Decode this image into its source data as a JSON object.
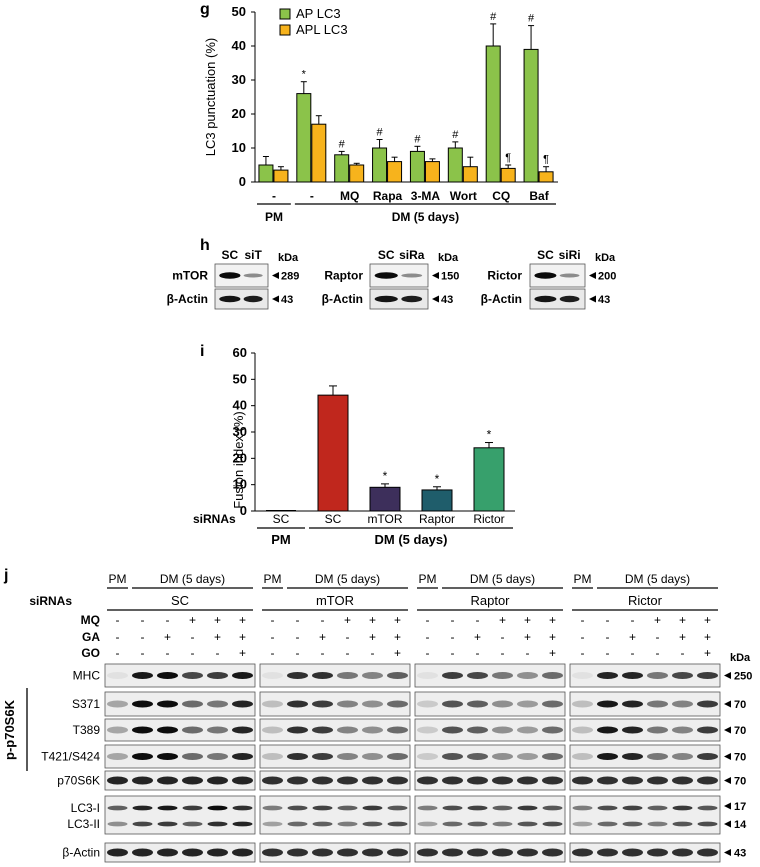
{
  "panels": {
    "g": "g",
    "h": "h",
    "i": "i",
    "j": "j"
  },
  "chart_data": [
    {
      "type": "bar",
      "panel": "g",
      "ylabel": "LC3 punctuation (%)",
      "ylim": [
        0,
        50
      ],
      "yticks": [
        "0",
        "10",
        "20",
        "30",
        "40",
        "50"
      ],
      "categories": [
        "-",
        "-",
        "MQ",
        "Rapa",
        "3-MA",
        "Wort",
        "CQ",
        "Baf"
      ],
      "group_labels": [
        "PM",
        "DM (5 days)"
      ],
      "series": [
        {
          "name": "AP LC3",
          "color": "#8bc34a",
          "values": [
            5,
            26,
            8,
            10,
            9,
            10,
            40,
            39
          ],
          "errors": [
            2.5,
            3.5,
            1,
            2.5,
            1.5,
            1.8,
            6.5,
            7
          ]
        },
        {
          "name": "APL LC3",
          "color": "#f7b31c",
          "values": [
            3.5,
            17,
            5,
            6,
            6,
            4.5,
            4,
            3
          ],
          "errors": [
            1,
            2.5,
            0.5,
            1.3,
            0.8,
            2.8,
            1,
            1.5
          ]
        }
      ],
      "annotations": {
        "AP LC3": [
          "",
          "*",
          "#",
          "#",
          "#",
          "#",
          "#",
          "#"
        ],
        "APL LC3": [
          "",
          "",
          "",
          "",
          "",
          "",
          "¶",
          "¶"
        ]
      },
      "legend": "top-left"
    },
    {
      "type": "bar",
      "panel": "i",
      "ylabel": "Fusion index (%)",
      "ylim": [
        0,
        60
      ],
      "yticks": [
        "0",
        "10",
        "20",
        "30",
        "40",
        "50",
        "60"
      ],
      "row_label": "siRNAs",
      "categories": [
        "SC",
        "SC",
        "mTOR",
        "Raptor",
        "Rictor"
      ],
      "group_labels": [
        "PM",
        "DM (5 days)"
      ],
      "values": [
        0,
        44,
        9,
        8,
        24
      ],
      "errors": [
        0,
        3.5,
        1.3,
        1.2,
        2
      ],
      "colors": [
        "#888888",
        "#c0271d",
        "#3d2f5b",
        "#1f5d6b",
        "#37a06c"
      ],
      "annotations": [
        "",
        "",
        "*",
        "*",
        "*"
      ]
    }
  ],
  "panel_h": {
    "kda_label": "kDa",
    "blots": [
      {
        "lanes": [
          "SC",
          "siT"
        ],
        "row1": "mTOR",
        "row1_kda": "289",
        "row2": "β-Actin",
        "row2_kda": "43"
      },
      {
        "lanes": [
          "SC",
          "siRa"
        ],
        "row1": "Raptor",
        "row1_kda": "150",
        "row2": "β-Actin",
        "row2_kda": "43"
      },
      {
        "lanes": [
          "SC",
          "siRi"
        ],
        "row1": "Rictor",
        "row1_kda": "200",
        "row2": "β-Actin",
        "row2_kda": "43"
      }
    ]
  },
  "panel_j": {
    "header_pm": "PM",
    "header_dm": "DM (5 days)",
    "sirnas_label": "siRNAs",
    "groups": [
      "SC",
      "mTOR",
      "Raptor",
      "Rictor"
    ],
    "treatment_rows": [
      {
        "label": "MQ",
        "signs": [
          "-",
          "-",
          "-",
          "+",
          "+",
          "+"
        ]
      },
      {
        "label": "GA",
        "signs": [
          "-",
          "-",
          "+",
          "-",
          "+",
          "+"
        ]
      },
      {
        "label": "GO",
        "signs": [
          "-",
          "-",
          "-",
          "-",
          "-",
          "+"
        ]
      }
    ],
    "kda_label": "kDa",
    "group_side_label": "p-p70S6K",
    "blot_rows": [
      {
        "label": "MHC",
        "kda": "250"
      },
      {
        "label": "S371",
        "kda": "70"
      },
      {
        "label": "T389",
        "kda": "70"
      },
      {
        "label": "T421/S424",
        "kda": "70"
      },
      {
        "label": "p70S6K",
        "kda": "70"
      },
      {
        "label": "LC3-I",
        "kda": "17"
      },
      {
        "label": "LC3-II",
        "kda": "14"
      },
      {
        "label": "β-Actin",
        "kda": "43"
      }
    ]
  }
}
